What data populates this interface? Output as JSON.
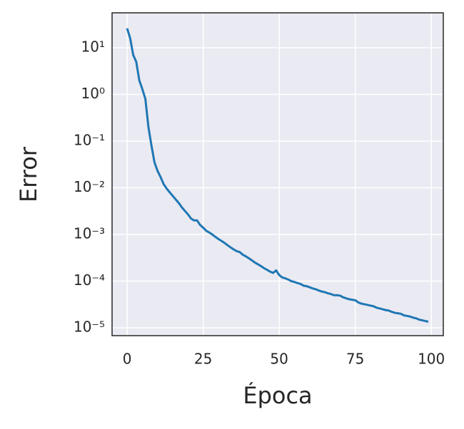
{
  "chart_data": {
    "type": "line",
    "x_label": "Época",
    "y_label": "Error",
    "x": [
      0,
      1,
      2,
      3,
      4,
      5,
      6,
      7,
      8,
      9,
      10,
      11,
      12,
      13,
      14,
      15,
      16,
      17,
      18,
      19,
      20,
      21,
      22,
      23,
      24,
      25,
      26,
      27,
      28,
      29,
      30,
      31,
      32,
      33,
      34,
      35,
      36,
      37,
      38,
      39,
      40,
      41,
      42,
      43,
      44,
      45,
      46,
      47,
      48,
      49,
      50,
      51,
      52,
      53,
      54,
      55,
      56,
      57,
      58,
      59,
      60,
      61,
      62,
      63,
      64,
      65,
      66,
      67,
      68,
      69,
      70,
      71,
      72,
      73,
      74,
      75,
      76,
      77,
      78,
      79,
      80,
      81,
      82,
      83,
      84,
      85,
      86,
      87,
      88,
      89,
      90,
      91,
      92,
      93,
      94,
      95,
      96,
      97,
      98,
      99
    ],
    "values": [
      26,
      16,
      7,
      5,
      2,
      1.3,
      0.8,
      0.2,
      0.08,
      0.035,
      0.023,
      0.017,
      0.012,
      0.0096,
      0.008,
      0.0067,
      0.0056,
      0.0047,
      0.0038,
      0.0032,
      0.0027,
      0.0022,
      0.002,
      0.002,
      0.0016,
      0.0014,
      0.0012,
      0.0011,
      0.001,
      0.00089,
      0.0008,
      0.00073,
      0.00066,
      0.00059,
      0.00053,
      0.00048,
      0.00044,
      0.00042,
      0.00037,
      0.00034,
      0.00031,
      0.00028,
      0.00025,
      0.00023,
      0.00021,
      0.00019,
      0.000175,
      0.00016,
      0.00015,
      0.00017,
      0.000135,
      0.00012,
      0.000115,
      0.000108,
      0.0001,
      9.6e-05,
      9.1e-05,
      8.7e-05,
      8e-05,
      7.8e-05,
      7.4e-05,
      7e-05,
      6.7e-05,
      6.3e-05,
      6e-05,
      5.8e-05,
      5.5e-05,
      5.3e-05,
      5e-05,
      5e-05,
      4.9e-05,
      4.5e-05,
      4.3e-05,
      4.1e-05,
      4e-05,
      3.9e-05,
      3.5e-05,
      3.3e-05,
      3.2e-05,
      3.1e-05,
      3e-05,
      2.9e-05,
      2.7e-05,
      2.6e-05,
      2.5e-05,
      2.4e-05,
      2.35e-05,
      2.2e-05,
      2.1e-05,
      2.05e-05,
      2e-05,
      1.85e-05,
      1.8e-05,
      1.75e-05,
      1.65e-05,
      1.6e-05,
      1.5e-05,
      1.45e-05,
      1.4e-05,
      1.35e-05
    ],
    "color": "#1f77b4",
    "xlim": [
      -4.95,
      103.95
    ],
    "xticks": [
      0,
      25,
      50,
      75,
      100
    ],
    "ylim": [
      6.8e-06,
      56
    ],
    "yscale": "log",
    "yticks": [
      {
        "value": 10,
        "label": "10¹"
      },
      {
        "value": 1,
        "label": "10⁰"
      },
      {
        "value": 0.1,
        "label": "10⁻¹"
      },
      {
        "value": 0.01,
        "label": "10⁻²"
      },
      {
        "value": 0.001,
        "label": "10⁻³"
      },
      {
        "value": 0.0001,
        "label": "10⁻⁴"
      },
      {
        "value": 1e-05,
        "label": "10⁻⁵"
      }
    ],
    "grid": true
  }
}
